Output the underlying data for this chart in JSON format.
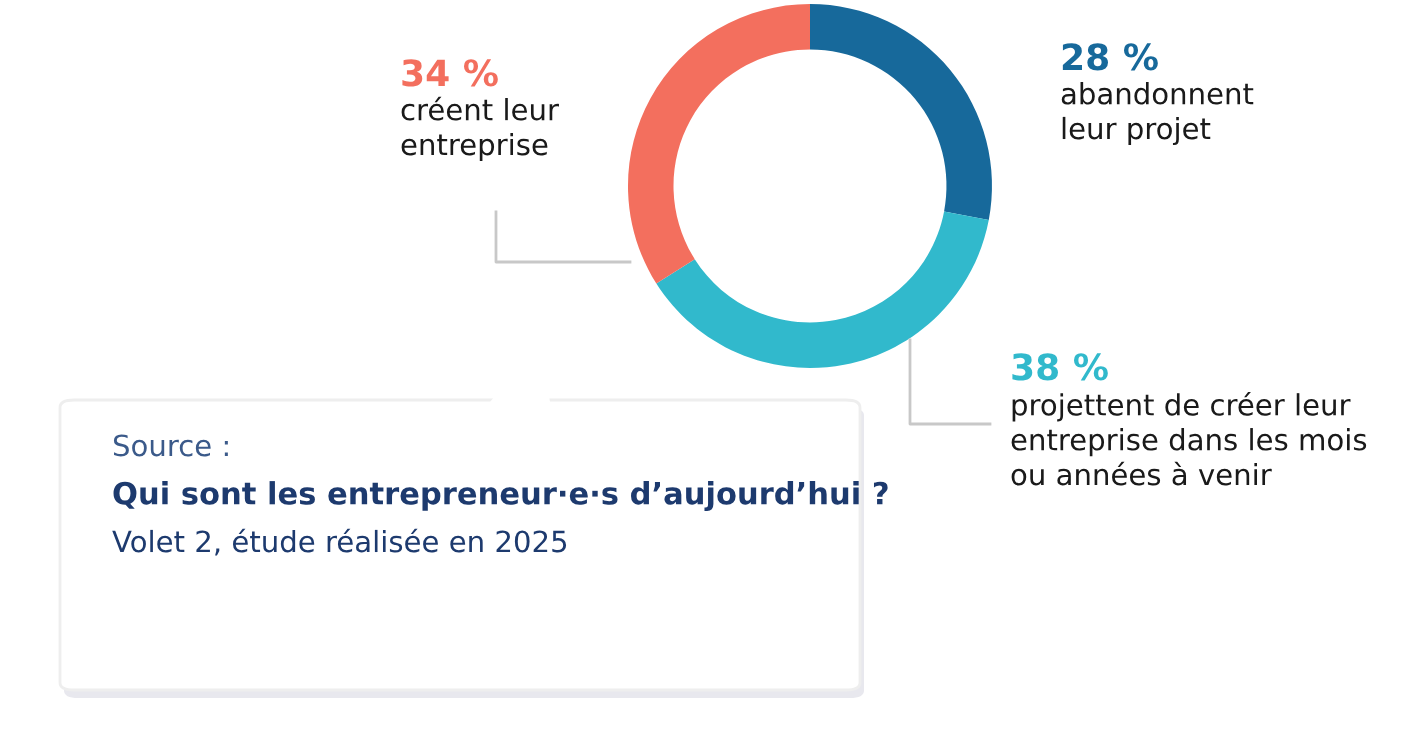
{
  "chart_data": {
    "type": "donut",
    "categories": [
      "abandonnent\nleur projet",
      "projettent de créer leur\nentreprise dans les mois\nou années à venir",
      "créent leur\nentreprise"
    ],
    "values": [
      28,
      38,
      34
    ],
    "colors": [
      "#17699b",
      "#31b9cc",
      "#f36f5e"
    ],
    "value_labels": [
      "28 %",
      "38 %",
      "34 %"
    ],
    "annotations": [
      "Source :",
      "Qui sont les entrepreneur·e·s d’aujourd’hui ?",
      "Volet 2, étude réalisée en 2025"
    ]
  }
}
